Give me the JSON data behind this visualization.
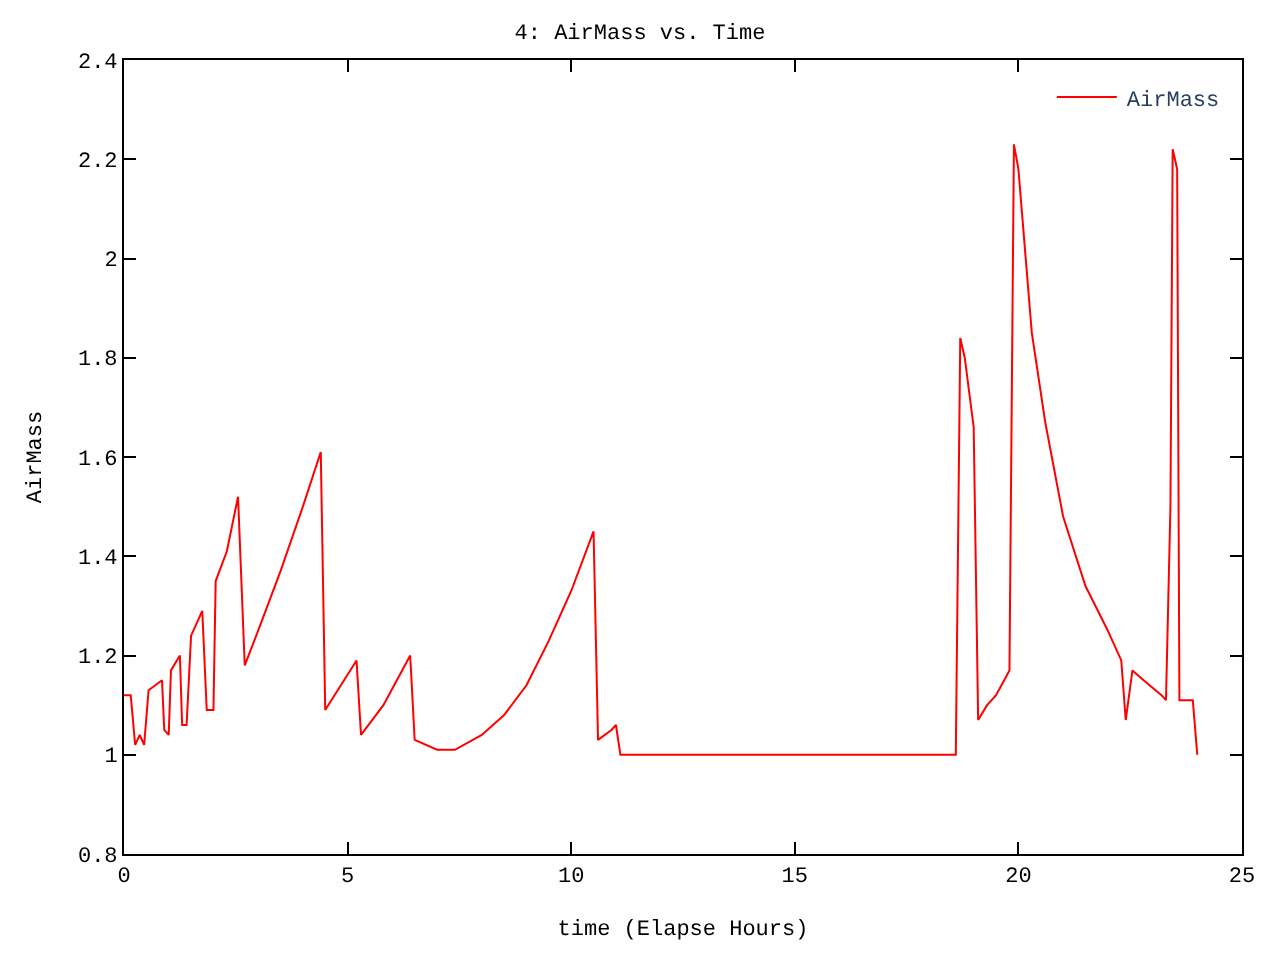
{
  "chart_data": {
    "type": "line",
    "title": "4: AirMass vs. Time",
    "xlabel": "time (Elapse Hours)",
    "ylabel": "AirMass",
    "xlim": [
      0,
      25
    ],
    "xticks": [
      0,
      5,
      10,
      15,
      20,
      25
    ],
    "ylim": [
      0.8,
      2.4
    ],
    "yticks": [
      0.8,
      1,
      1.2,
      1.4,
      1.6,
      1.8,
      2,
      2.2,
      2.4
    ],
    "grid": false,
    "legend": "top right",
    "marker": "none",
    "line_style": "solid",
    "series": [
      {
        "name": "AirMass",
        "color": "#ff0000",
        "x": [
          0,
          0.15,
          0.25,
          0.35,
          0.45,
          0.55,
          0.7,
          0.85,
          0.9,
          1.0,
          1.05,
          1.25,
          1.3,
          1.4,
          1.5,
          1.75,
          1.85,
          2.0,
          2.05,
          2.3,
          2.55,
          2.7,
          3.0,
          3.5,
          4.0,
          4.4,
          4.5,
          5.2,
          5.3,
          5.8,
          6.4,
          6.5,
          7.0,
          7.4,
          8.0,
          8.5,
          9.0,
          9.5,
          10.0,
          10.5,
          10.6,
          10.9,
          11.0,
          11.1,
          18.5,
          18.6,
          18.7,
          18.8,
          19.0,
          19.1,
          19.3,
          19.5,
          19.8,
          19.9,
          20.0,
          20.3,
          20.6,
          21.0,
          21.5,
          22.0,
          22.3,
          22.4,
          22.55,
          22.8,
          23.2,
          23.3,
          23.4,
          23.45,
          23.55,
          23.6,
          23.9,
          24.0
        ],
        "values": [
          1.12,
          1.12,
          1.02,
          1.04,
          1.02,
          1.13,
          1.14,
          1.15,
          1.05,
          1.04,
          1.17,
          1.2,
          1.06,
          1.06,
          1.24,
          1.29,
          1.09,
          1.09,
          1.35,
          1.41,
          1.52,
          1.18,
          1.25,
          1.37,
          1.5,
          1.61,
          1.09,
          1.19,
          1.04,
          1.1,
          1.2,
          1.03,
          1.01,
          1.01,
          1.04,
          1.08,
          1.14,
          1.23,
          1.33,
          1.45,
          1.03,
          1.05,
          1.06,
          1.0,
          1.0,
          1.0,
          1.84,
          1.8,
          1.66,
          1.07,
          1.1,
          1.12,
          1.17,
          2.23,
          2.18,
          1.85,
          1.67,
          1.48,
          1.34,
          1.25,
          1.19,
          1.07,
          1.17,
          1.15,
          1.12,
          1.11,
          1.5,
          2.22,
          2.18,
          1.11,
          1.11,
          1.0
        ]
      }
    ]
  }
}
